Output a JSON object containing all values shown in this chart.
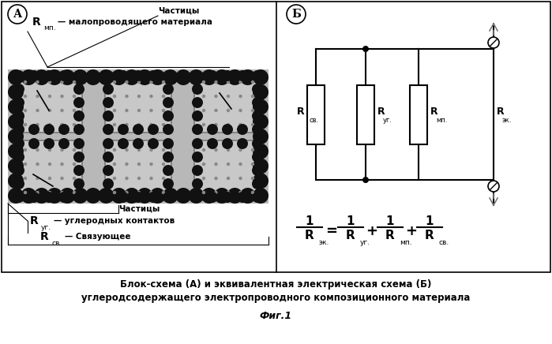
{
  "bg_color": "#ffffff",
  "title_line1": "Блок-схема (А) и эквивалентная электрическая схема (Б)",
  "title_line2": "углеродсодержащего электропроводного композиционного материала",
  "title_line3": "Фиг.1",
  "panel_A_label": "А",
  "panel_B_label": "Б",
  "text_mp_particles": "Частицы",
  "text_mp": "— малопроводящего материала",
  "text_ug_particles": "Частицы",
  "text_ug": "— углеродных контактов",
  "text_sv": "— Связующее"
}
